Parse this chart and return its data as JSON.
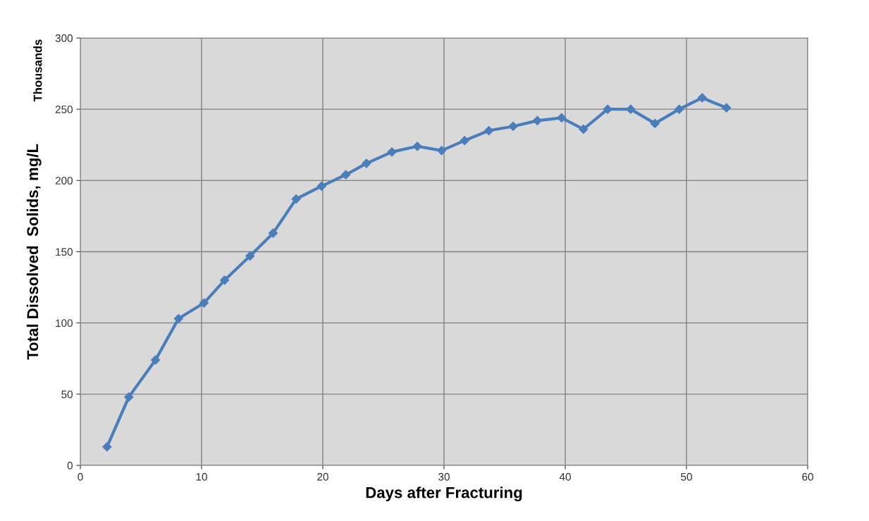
{
  "chart_data": {
    "type": "line",
    "xlabel": "Days after Fracturing",
    "ylabel": "Total Dissolved  Solids, mg/L",
    "annotations": [
      "Thousands"
    ],
    "x": [
      2.2,
      4.0,
      6.2,
      8.1,
      10.2,
      11.9,
      14.0,
      15.9,
      17.8,
      19.9,
      21.9,
      23.6,
      25.7,
      27.8,
      29.8,
      31.7,
      33.7,
      35.7,
      37.7,
      39.7,
      41.5,
      43.5,
      45.4,
      47.4,
      49.4,
      51.3,
      53.3
    ],
    "series": [
      {
        "color": "#4a7ebb",
        "values": [
          13,
          48,
          74,
          103,
          114,
          130,
          147,
          163,
          187,
          196,
          204,
          212,
          220,
          224,
          221,
          228,
          235,
          238,
          242,
          244,
          236,
          250,
          250,
          240,
          250,
          258,
          251
        ]
      }
    ],
    "xlim": [
      0,
      60
    ],
    "xticks": [
      0,
      10,
      20,
      30,
      40,
      50,
      60
    ],
    "ylim": [
      0,
      300
    ],
    "yticks": [
      0,
      50,
      100,
      150,
      200,
      250,
      300
    ],
    "grid": true,
    "marker": "diamond",
    "line_style": "solid",
    "legend": false
  }
}
